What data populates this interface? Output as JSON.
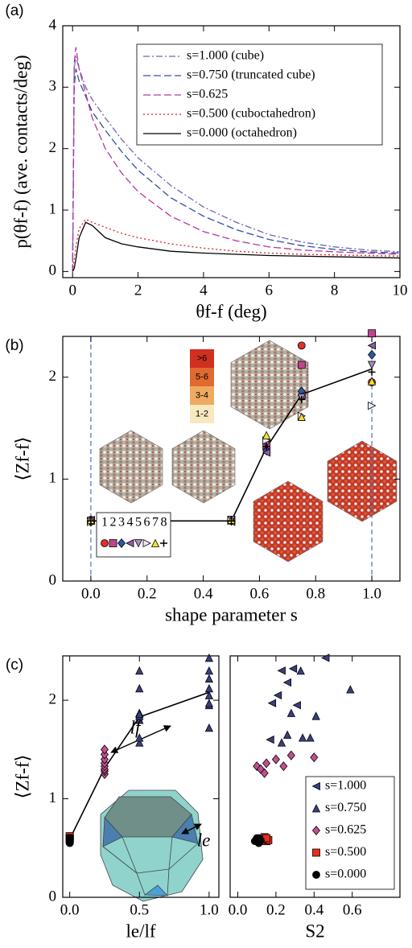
{
  "chart_data": [
    {
      "type": "line",
      "panel_label": "(a)",
      "xlabel": "θf-f (deg)",
      "ylabel": "p(θf-f) (ave. contacts/deg)",
      "xlim": [
        -0.3,
        10
      ],
      "ylim": [
        -0.1,
        4
      ],
      "xticks": [
        0,
        2,
        4,
        6,
        8,
        10
      ],
      "yticks": [
        0,
        1,
        2,
        3,
        4
      ],
      "legend": "upper-right",
      "x": [
        0,
        0.05,
        0.1,
        0.2,
        0.4,
        0.6,
        1,
        1.5,
        2,
        3,
        4,
        5,
        6,
        7,
        8,
        9,
        10
      ],
      "series": [
        {
          "name": "s=1.000 (cube)",
          "color": "#7463b4",
          "linestyle": "dashdot",
          "values": [
            0,
            3.3,
            3.5,
            3.3,
            3.0,
            2.8,
            2.5,
            2.15,
            1.85,
            1.4,
            1.05,
            0.8,
            0.6,
            0.48,
            0.4,
            0.35,
            0.32
          ]
        },
        {
          "name": "s=0.750 (truncated cube)",
          "color": "#2d4f9e",
          "linestyle": "dashed",
          "values": [
            0,
            3.0,
            3.3,
            3.1,
            2.85,
            2.6,
            2.3,
            1.95,
            1.65,
            1.2,
            0.9,
            0.68,
            0.52,
            0.42,
            0.36,
            0.32,
            0.3
          ]
        },
        {
          "name": "s=0.625",
          "color": "#b03aa0",
          "linestyle": "dashed",
          "values": [
            0,
            3.4,
            3.65,
            3.3,
            2.9,
            2.5,
            2.0,
            1.6,
            1.3,
            0.9,
            0.65,
            0.5,
            0.4,
            0.35,
            0.32,
            0.3,
            0.28
          ]
        },
        {
          "name": "s=0.500 (cuboctahedron)",
          "color": "#e02020",
          "linestyle": "dotted",
          "values": [
            0,
            0.2,
            0.4,
            0.7,
            0.85,
            0.8,
            0.72,
            0.62,
            0.55,
            0.45,
            0.38,
            0.33,
            0.3,
            0.28,
            0.27,
            0.26,
            0.25
          ]
        },
        {
          "name": "s=0.000 (octahedron)",
          "color": "#000000",
          "linestyle": "solid",
          "values": [
            0,
            0.05,
            0.2,
            0.55,
            0.8,
            0.75,
            0.55,
            0.45,
            0.4,
            0.33,
            0.3,
            0.28,
            0.26,
            0.25,
            0.24,
            0.23,
            0.22
          ]
        }
      ]
    },
    {
      "type": "scatter",
      "panel_label": "(b)",
      "xlabel": "shape parameter s",
      "ylabel": "⟨Zf-f⟩",
      "xlim": [
        -0.1,
        1.1
      ],
      "ylim": [
        0,
        2.4
      ],
      "xticks": [
        {
          "value": 0,
          "label": "0.0"
        },
        0.2,
        0.4,
        0.6,
        0.8,
        {
          "value": 1,
          "label": "1.0"
        }
      ],
      "yticks": [
        0,
        1,
        2
      ],
      "vlines": [
        0,
        1
      ],
      "vline_color": "#4a6fc0",
      "legend": "lower-left",
      "colorbar_labels": [
        ">6",
        "5-6",
        "3-4",
        "1-2"
      ],
      "x": [
        0,
        0.5,
        0.625,
        0.75,
        1
      ],
      "trend": {
        "x": [
          0,
          0.5,
          0.625,
          0.75,
          1
        ],
        "values": [
          0.59,
          0.59,
          1.31,
          1.83,
          2.08
        ]
      },
      "series": [
        {
          "name": "1",
          "marker": "circle",
          "color": "#e0302a",
          "values": [
            0.6,
            0.59,
            1.3,
            2.31,
            1.95
          ]
        },
        {
          "name": "2",
          "marker": "square",
          "color": "#c2448f",
          "values": [
            0.59,
            0.6,
            1.33,
            2.12,
            2.43
          ]
        },
        {
          "name": "3",
          "marker": "diamond",
          "color": "#2d5aa0",
          "values": [
            0.58,
            0.59,
            1.28,
            1.86,
            2.22
          ]
        },
        {
          "name": "4",
          "marker": "tri-left",
          "color": "#8e5ea2",
          "values": [
            0.6,
            0.58,
            1.26,
            1.82,
            2.31
          ]
        },
        {
          "name": "5",
          "marker": "tri-down",
          "color": "#a98bc4",
          "values": [
            0.59,
            0.6,
            1.35,
            1.8,
            2.12
          ]
        },
        {
          "name": "6",
          "marker": "tri-right",
          "color": "#eeeaf6",
          "values": [
            0.58,
            0.59,
            1.38,
            1.62,
            1.72
          ]
        },
        {
          "name": "7",
          "marker": "tri-up",
          "color": "#f2e030",
          "values": [
            0.6,
            0.6,
            1.43,
            1.61,
            1.96
          ]
        },
        {
          "name": "8",
          "marker": "plus",
          "color": "#000000",
          "values": [
            0.59,
            0.59,
            1.32,
            1.78,
            2.05
          ]
        }
      ]
    },
    {
      "type": "scatter",
      "panel_label": "(c)",
      "xlabel": "le/lf",
      "ylabel": "⟨Zf-f⟩",
      "xlim": [
        -0.05,
        1.07
      ],
      "ylim": [
        0,
        2.45
      ],
      "xticks": [
        {
          "value": 0,
          "label": "0.0"
        },
        0.5,
        {
          "value": 1,
          "label": "1.0"
        }
      ],
      "yticks": [
        0,
        1,
        2
      ],
      "annotations": [
        "lf",
        "le"
      ],
      "trend": {
        "x": [
          0,
          0.25,
          0.5,
          1
        ],
        "values": [
          0.59,
          1.31,
          1.83,
          2.08
        ]
      },
      "series": [
        {
          "marker": "tri-up",
          "color": "#3a3f80",
          "x": [
            1,
            1,
            1,
            1,
            1,
            1,
            1,
            1
          ],
          "values": [
            1.72,
            1.95,
            1.97,
            2.05,
            2.12,
            2.22,
            2.3,
            2.43
          ]
        },
        {
          "marker": "tri-up",
          "color": "#3a3f80",
          "x": [
            0.5,
            0.5,
            0.5,
            0.5,
            0.5,
            0.5,
            0.5,
            0.5
          ],
          "values": [
            1.57,
            1.62,
            1.8,
            1.84,
            1.87,
            2.12,
            2.3,
            1.86
          ]
        },
        {
          "marker": "diamond",
          "color": "#c0508f",
          "x": [
            0.25,
            0.25,
            0.25,
            0.25,
            0.25,
            0.25,
            0.25,
            0.25
          ],
          "values": [
            1.25,
            1.28,
            1.3,
            1.33,
            1.36,
            1.4,
            1.45,
            1.5
          ]
        },
        {
          "marker": "square",
          "color": "#e03020",
          "x": [
            0,
            0,
            0,
            0,
            0,
            0,
            0,
            0
          ],
          "values": [
            0.6,
            0.61,
            0.59,
            0.58,
            0.6,
            0.62,
            0.6,
            0.59
          ]
        },
        {
          "marker": "circle",
          "color": "#000000",
          "x": [
            0,
            0,
            0,
            0,
            0,
            0,
            0,
            0
          ],
          "values": [
            0.55,
            0.57,
            0.58,
            0.6,
            0.59,
            0.58,
            0.6,
            0.58
          ]
        }
      ]
    },
    {
      "type": "scatter",
      "xlabel": "S2",
      "xlim": [
        -0.04,
        0.85
      ],
      "ylim": [
        0,
        2.45
      ],
      "xticks": [
        {
          "value": 0,
          "label": "0.0"
        },
        0.2,
        0.4,
        0.6
      ],
      "legend": "lower-right",
      "series": [
        {
          "name": "s=1.000",
          "marker": "tri-left",
          "color": "#3a3f80",
          "x": [
            0.17,
            0.26,
            0.21,
            0.31,
            0.18,
            0.46,
            0.29,
            0.23
          ],
          "values": [
            1.6,
            2.18,
            2.05,
            1.95,
            1.97,
            2.43,
            2.32,
            2.3
          ]
        },
        {
          "name": "s=0.750",
          "marker": "tri-up",
          "color": "#3a3f80",
          "x": [
            0.23,
            0.59,
            0.33,
            0.41,
            0.38,
            0.28,
            0.26,
            0.34
          ],
          "values": [
            1.57,
            2.11,
            2.3,
            1.84,
            1.62,
            1.87,
            1.65,
            1.62
          ]
        },
        {
          "name": "s=0.625",
          "marker": "diamond",
          "color": "#c0508f",
          "x": [
            0.1,
            0.12,
            0.14,
            0.15,
            0.2,
            0.24,
            0.28,
            0.4
          ],
          "values": [
            1.33,
            1.3,
            1.26,
            1.36,
            1.4,
            1.33,
            1.44,
            1.42
          ]
        },
        {
          "name": "s=0.500",
          "marker": "square",
          "color": "#e03020",
          "x": [
            0.12,
            0.13,
            0.14,
            0.15,
            0.16,
            0.14,
            0.13,
            0.15
          ],
          "values": [
            0.58,
            0.59,
            0.6,
            0.57,
            0.58,
            0.61,
            0.59,
            0.6
          ]
        },
        {
          "name": "s=0.000",
          "marker": "circle",
          "color": "#000000",
          "x": [
            0.09,
            0.1,
            0.11,
            0.1,
            0.11,
            0.12,
            0.1,
            0.11
          ],
          "values": [
            0.57,
            0.58,
            0.6,
            0.57,
            0.59,
            0.58,
            0.6,
            0.55
          ]
        }
      ]
    }
  ]
}
